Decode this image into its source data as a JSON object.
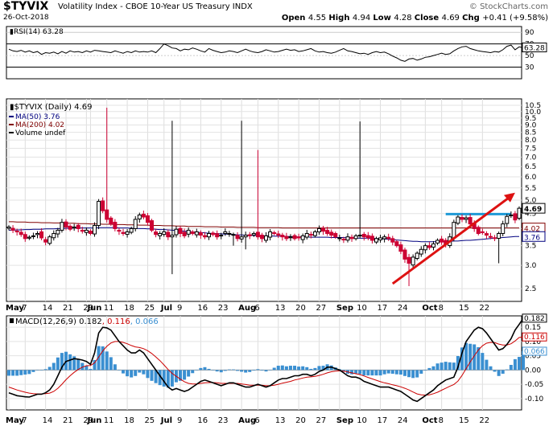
{
  "header": {
    "ticker": "$TYVIX",
    "description": "Volatility Index - CBOE 10-Year US Treasury  INDX",
    "date": "26-Oct-2018",
    "watermark": "© StockCharts.com",
    "ohlc": [
      {
        "label": "Open",
        "value": "4.55"
      },
      {
        "label": "High",
        "value": "4.94"
      },
      {
        "label": "Low",
        "value": "4.28"
      },
      {
        "label": "Close",
        "value": "4.69"
      },
      {
        "label": "Chg",
        "value": "+0.41 (+9.58%)"
      }
    ]
  },
  "colors": {
    "up": "#000000",
    "down": "#cc0033",
    "ma50": "#000080",
    "ma200": "#800000",
    "rsi": "#000000",
    "macd": "#000000",
    "signal": "#cc0000",
    "histogram": "#3a8fd1",
    "resistance": "#1e9ad6",
    "arrow": "#dd1111"
  },
  "chart_data": [
    {
      "type": "line",
      "title": "RSI(14) 63.28",
      "series": [
        {
          "name": "RSI(14)",
          "last": "63.28",
          "values": [
            61,
            58,
            57,
            59,
            56,
            58,
            55,
            57,
            52,
            55,
            54,
            56,
            53,
            57,
            54,
            58,
            56,
            57,
            55,
            58,
            56,
            59,
            58,
            57,
            56,
            55,
            58,
            56,
            54,
            57,
            55,
            58,
            56,
            57,
            56,
            58,
            55,
            62,
            70,
            67,
            63,
            62,
            58,
            61,
            60,
            63,
            61,
            58,
            56,
            62,
            59,
            57,
            55,
            56,
            58,
            57,
            55,
            58,
            61,
            58,
            56,
            55,
            57,
            60,
            58,
            56,
            57,
            59,
            61,
            59,
            60,
            57,
            58,
            60,
            62,
            58,
            56,
            57,
            55,
            54,
            56,
            59,
            62,
            58,
            57,
            55,
            53,
            54,
            52,
            55,
            57,
            55,
            56,
            53,
            49,
            46,
            42,
            40,
            44,
            45,
            42,
            44,
            47,
            48,
            50,
            52,
            54,
            52,
            53,
            58,
            62,
            65,
            66,
            62,
            60,
            58,
            57,
            56,
            55,
            57,
            56,
            60,
            66,
            68,
            60,
            65,
            63.28
          ]
        }
      ],
      "y_ticks": [
        "90",
        "70",
        "50",
        "30"
      ],
      "ylim": [
        10,
        100
      ]
    },
    {
      "type": "candlestick",
      "title": "$TYVIX (Daily) 4.69",
      "scale": "log",
      "legend": [
        "MA(50) 3.76",
        "MA(200) 4.02",
        "Volume undef"
      ],
      "y_ticks": [
        "10.5",
        "10.0",
        "9.5",
        "9.0",
        "8.5",
        "8.0",
        "7.5",
        "7.0",
        "6.5",
        "6.0",
        "5.5",
        "5.0",
        "4.5",
        "4.0",
        "3.5",
        "3.0",
        "2.5"
      ],
      "last_labels": {
        "close": "4.69",
        "ma200": "4.02",
        "ma50": "3.76"
      },
      "x_labels": [
        "May",
        "7",
        "14",
        "21",
        "29",
        "Jun",
        "11",
        "18",
        "25",
        "Jul",
        "9",
        "16",
        "23",
        "Aug",
        "6",
        "13",
        "20",
        "27",
        "Sep",
        "10",
        "17",
        "24",
        "Oct",
        "8",
        "15",
        "22"
      ],
      "closes": [
        4.05,
        3.95,
        3.9,
        3.82,
        3.7,
        3.74,
        3.78,
        3.85,
        3.72,
        3.6,
        3.75,
        3.85,
        3.95,
        4.2,
        4.05,
        3.98,
        4.05,
        4.0,
        3.92,
        3.95,
        3.85,
        4.1,
        4.95,
        4.6,
        4.3,
        4.15,
        4.0,
        3.92,
        3.85,
        3.9,
        4.0,
        4.3,
        4.45,
        4.38,
        4.2,
        3.95,
        3.82,
        3.85,
        3.9,
        3.75,
        3.8,
        3.98,
        3.85,
        3.78,
        3.95,
        3.85,
        3.9,
        3.8,
        3.75,
        3.85,
        3.82,
        3.75,
        3.8,
        3.9,
        3.85,
        3.82,
        3.7,
        3.75,
        3.8,
        3.78,
        3.85,
        3.75,
        3.7,
        3.78,
        3.9,
        3.85,
        3.8,
        3.75,
        3.7,
        3.75,
        3.7,
        3.72,
        3.78,
        3.85,
        3.8,
        3.9,
        4.0,
        3.92,
        3.85,
        3.8,
        3.75,
        3.72,
        3.68,
        3.75,
        3.7,
        3.78,
        3.8,
        3.75,
        3.72,
        3.65,
        3.7,
        3.72,
        3.75,
        3.7,
        3.6,
        3.5,
        3.35,
        3.15,
        3.05,
        3.2,
        3.3,
        3.4,
        3.5,
        3.45,
        3.55,
        3.65,
        3.6,
        3.55,
        3.75,
        4.2,
        4.38,
        4.3,
        4.35,
        4.15,
        4.0,
        3.85,
        3.9,
        3.8,
        3.75,
        3.72,
        3.85,
        4.15,
        4.4,
        4.45,
        4.28,
        4.69
      ],
      "highs": {
        "24": 10.3,
        "40": 9.3,
        "57": 9.3,
        "61": 7.4,
        "86": 9.25
      },
      "lows": {
        "40": 2.8,
        "55": 3.5,
        "58": 3.4,
        "98": 2.55,
        "120": 3.05
      },
      "ma50": [
        3.95,
        3.95,
        3.96,
        3.96,
        3.97,
        3.97,
        3.98,
        3.98,
        3.98,
        3.99,
        3.99,
        3.99,
        4.0,
        4.0,
        4.01,
        4.01,
        4.02,
        4.02,
        4.02,
        4.02,
        4.02,
        4.02,
        4.03,
        4.03,
        4.03,
        4.03,
        4.03,
        4.02,
        4.02,
        4.02,
        4.01,
        4.01,
        4.0,
        4.0,
        3.99,
        3.99,
        3.98,
        3.97,
        3.97,
        3.96,
        3.95,
        3.94,
        3.93,
        3.92,
        3.91,
        3.9,
        3.89,
        3.88,
        3.87,
        3.86,
        3.85,
        3.85,
        3.84,
        3.83,
        3.83,
        3.82,
        3.81,
        3.81,
        3.8,
        3.8,
        3.79,
        3.79,
        3.78,
        3.78,
        3.78,
        3.77,
        3.77,
        3.77,
        3.76,
        3.76,
        3.75,
        3.75,
        3.75,
        3.75,
        3.74,
        3.74,
        3.74,
        3.74,
        3.74,
        3.73,
        3.73,
        3.73,
        3.73,
        3.72,
        3.72,
        3.72,
        3.71,
        3.71,
        3.71,
        3.7,
        3.7,
        3.69,
        3.69,
        3.68,
        3.67,
        3.66,
        3.65,
        3.64,
        3.63,
        3.62,
        3.62,
        3.61,
        3.61,
        3.61,
        3.61,
        3.61,
        3.61,
        3.62,
        3.62,
        3.63,
        3.63,
        3.64,
        3.65,
        3.65,
        3.66,
        3.67,
        3.68,
        3.69,
        3.7,
        3.71,
        3.72,
        3.73,
        3.74,
        3.75,
        3.76,
        3.76
      ],
      "ma200": [
        4.22,
        4.22,
        4.21,
        4.21,
        4.21,
        4.2,
        4.2,
        4.2,
        4.19,
        4.19,
        4.19,
        4.18,
        4.18,
        4.18,
        4.17,
        4.17,
        4.17,
        4.16,
        4.16,
        4.16,
        4.15,
        4.15,
        4.15,
        4.14,
        4.14,
        4.14,
        4.13,
        4.13,
        4.13,
        4.12,
        4.12,
        4.12,
        4.11,
        4.11,
        4.11,
        4.1,
        4.1,
        4.1,
        4.09,
        4.09,
        4.09,
        4.08,
        4.08,
        4.08,
        4.07,
        4.07,
        4.07,
        4.07,
        4.06,
        4.06,
        4.06,
        4.06,
        4.05,
        4.05,
        4.05,
        4.05,
        4.04,
        4.04,
        4.04,
        4.04,
        4.04,
        4.03,
        4.03,
        4.03,
        4.03,
        4.03,
        4.03,
        4.02,
        4.02,
        4.02,
        4.02,
        4.02,
        4.02,
        4.02,
        4.02,
        4.02,
        4.02,
        4.02,
        4.02,
        4.02,
        4.02,
        4.02,
        4.02,
        4.02,
        4.02,
        4.02,
        4.02,
        4.02,
        4.02,
        4.02,
        4.02,
        4.02,
        4.02,
        4.02,
        4.02,
        4.02,
        4.02,
        4.02,
        4.02,
        4.02,
        4.02,
        4.02,
        4.02,
        4.02,
        4.02,
        4.02,
        4.02,
        4.02,
        4.02,
        4.02,
        4.02,
        4.02,
        4.02,
        4.02,
        4.02,
        4.02,
        4.02,
        4.02,
        4.02,
        4.02,
        4.02,
        4.02,
        4.02,
        4.02,
        4.02,
        4.02
      ]
    },
    {
      "type": "line",
      "title": "MACD(12,26,9) 0.182, 0.116, 0.066",
      "legend": [
        {
          "name": "MACD(12,26,9)",
          "value": "0.182"
        },
        {
          "name": "signal",
          "value": "0.116"
        },
        {
          "name": "histogram",
          "value": "0.066"
        }
      ],
      "y_ticks": [
        "0.15",
        "0.10",
        "0.05",
        "0.00",
        "-0.05",
        "-0.10"
      ],
      "ylim": [
        -0.14,
        0.19
      ],
      "last_labels": [
        "0.182",
        "0.116",
        "0.066"
      ],
      "x_labels": [
        "May",
        "7",
        "14",
        "21",
        "29",
        "Jun",
        "11",
        "18",
        "25",
        "Jul",
        "9",
        "16",
        "23",
        "Aug",
        "6",
        "13",
        "20",
        "27",
        "Sep",
        "10",
        "17",
        "24",
        "Oct",
        "8",
        "15",
        "22"
      ],
      "macd": [
        -0.08,
        -0.085,
        -0.09,
        -0.092,
        -0.094,
        -0.095,
        -0.09,
        -0.085,
        -0.085,
        -0.08,
        -0.07,
        -0.05,
        -0.02,
        0.01,
        0.03,
        0.035,
        0.04,
        0.038,
        0.035,
        0.03,
        0.02,
        0.06,
        0.13,
        0.15,
        0.148,
        0.14,
        0.12,
        0.1,
        0.085,
        0.07,
        0.06,
        0.06,
        0.07,
        0.06,
        0.04,
        0.02,
        0.0,
        -0.02,
        -0.04,
        -0.06,
        -0.07,
        -0.065,
        -0.07,
        -0.075,
        -0.07,
        -0.06,
        -0.05,
        -0.04,
        -0.035,
        -0.04,
        -0.045,
        -0.05,
        -0.055,
        -0.05,
        -0.045,
        -0.045,
        -0.05,
        -0.055,
        -0.06,
        -0.06,
        -0.055,
        -0.05,
        -0.055,
        -0.06,
        -0.055,
        -0.045,
        -0.035,
        -0.03,
        -0.03,
        -0.025,
        -0.02,
        -0.02,
        -0.015,
        -0.015,
        -0.02,
        -0.015,
        -0.005,
        0.0,
        0.01,
        0.01,
        0.005,
        0.0,
        -0.01,
        -0.02,
        -0.025,
        -0.025,
        -0.03,
        -0.04,
        -0.045,
        -0.05,
        -0.055,
        -0.06,
        -0.06,
        -0.06,
        -0.065,
        -0.07,
        -0.075,
        -0.085,
        -0.095,
        -0.105,
        -0.11,
        -0.1,
        -0.09,
        -0.08,
        -0.07,
        -0.055,
        -0.045,
        -0.035,
        -0.03,
        -0.025,
        0.01,
        0.06,
        0.1,
        0.12,
        0.14,
        0.15,
        0.145,
        0.13,
        0.11,
        0.09,
        0.07,
        0.075,
        0.09,
        0.11,
        0.14,
        0.16,
        0.182
      ],
      "signal": [
        -0.06,
        -0.065,
        -0.07,
        -0.074,
        -0.078,
        -0.081,
        -0.083,
        -0.084,
        -0.084,
        -0.083,
        -0.081,
        -0.075,
        -0.064,
        -0.05,
        -0.034,
        -0.02,
        -0.008,
        0.002,
        0.01,
        0.015,
        0.016,
        0.025,
        0.046,
        0.067,
        0.083,
        0.095,
        0.1,
        0.1,
        0.097,
        0.092,
        0.086,
        0.081,
        0.079,
        0.075,
        0.068,
        0.058,
        0.046,
        0.033,
        0.018,
        0.002,
        -0.012,
        -0.022,
        -0.032,
        -0.041,
        -0.047,
        -0.049,
        -0.049,
        -0.047,
        -0.045,
        -0.044,
        -0.044,
        -0.045,
        -0.047,
        -0.047,
        -0.047,
        -0.047,
        -0.047,
        -0.049,
        -0.051,
        -0.053,
        -0.053,
        -0.053,
        -0.053,
        -0.055,
        -0.055,
        -0.053,
        -0.05,
        -0.046,
        -0.043,
        -0.04,
        -0.035,
        -0.032,
        -0.028,
        -0.025,
        -0.024,
        -0.022,
        -0.019,
        -0.015,
        -0.01,
        -0.006,
        -0.004,
        -0.003,
        -0.004,
        -0.007,
        -0.01,
        -0.013,
        -0.016,
        -0.021,
        -0.026,
        -0.031,
        -0.036,
        -0.041,
        -0.045,
        -0.048,
        -0.052,
        -0.055,
        -0.059,
        -0.064,
        -0.07,
        -0.077,
        -0.084,
        -0.087,
        -0.088,
        -0.087,
        -0.083,
        -0.078,
        -0.071,
        -0.064,
        -0.057,
        -0.051,
        -0.039,
        -0.019,
        0.005,
        0.028,
        0.05,
        0.07,
        0.085,
        0.094,
        0.097,
        0.096,
        0.091,
        0.088,
        0.088,
        0.092,
        0.102,
        0.114,
        0.116
      ]
    }
  ]
}
